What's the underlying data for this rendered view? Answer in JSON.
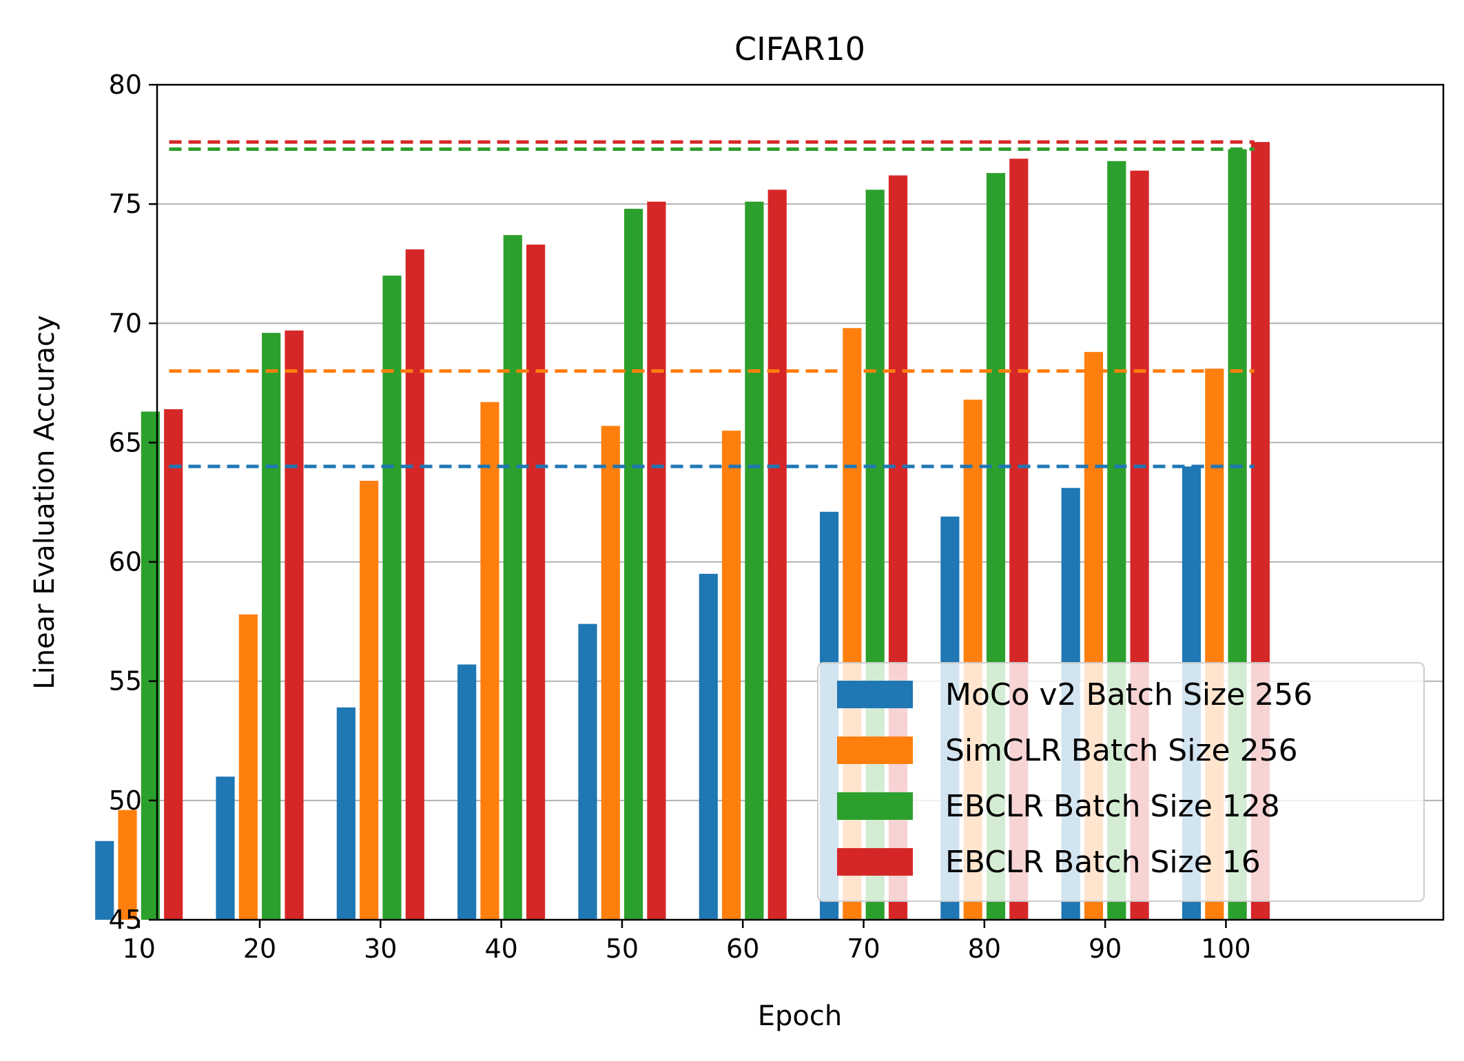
{
  "chart_data": {
    "type": "bar",
    "title": "CIFAR10",
    "xlabel": "Epoch",
    "ylabel": "Linear Evaluation Accuracy",
    "categories": [
      "10",
      "20",
      "30",
      "40",
      "50",
      "60",
      "70",
      "80",
      "90",
      "100"
    ],
    "ylim": [
      45,
      80
    ],
    "yticks": [
      45,
      50,
      55,
      60,
      65,
      70,
      75,
      80
    ],
    "grid": "horizontal",
    "legend_position": "lower right",
    "series": [
      {
        "name": "MoCo v2 Batch Size 256",
        "color": "#1f77b4",
        "values": [
          48.3,
          51.0,
          53.9,
          55.7,
          57.4,
          59.5,
          62.1,
          61.9,
          63.1,
          64.0
        ]
      },
      {
        "name": "SimCLR Batch Size 256",
        "color": "#ff7f0e",
        "values": [
          49.6,
          57.8,
          63.4,
          66.7,
          65.7,
          65.5,
          69.8,
          66.8,
          68.8,
          68.1
        ]
      },
      {
        "name": "EBCLR Batch Size 128",
        "color": "#2ca02c",
        "values": [
          66.3,
          69.6,
          72.0,
          73.7,
          74.8,
          75.1,
          75.6,
          76.3,
          76.8,
          77.3
        ]
      },
      {
        "name": "EBCLR Batch Size 16",
        "color": "#d62728",
        "values": [
          66.4,
          69.7,
          73.1,
          73.3,
          75.1,
          75.6,
          76.2,
          76.9,
          76.4,
          77.6
        ]
      }
    ],
    "reference_lines": [
      {
        "series": "MoCo v2 Batch Size 256",
        "color": "#1f77b4",
        "value": 64.0,
        "style": "dashed"
      },
      {
        "series": "SimCLR Batch Size 256",
        "color": "#ff7f0e",
        "value": 68.0,
        "style": "dashed"
      },
      {
        "series": "EBCLR Batch Size 128",
        "color": "#2ca02c",
        "value": 77.3,
        "style": "dashed"
      },
      {
        "series": "EBCLR Batch Size 16",
        "color": "#d62728",
        "value": 77.6,
        "style": "dashed"
      }
    ]
  }
}
